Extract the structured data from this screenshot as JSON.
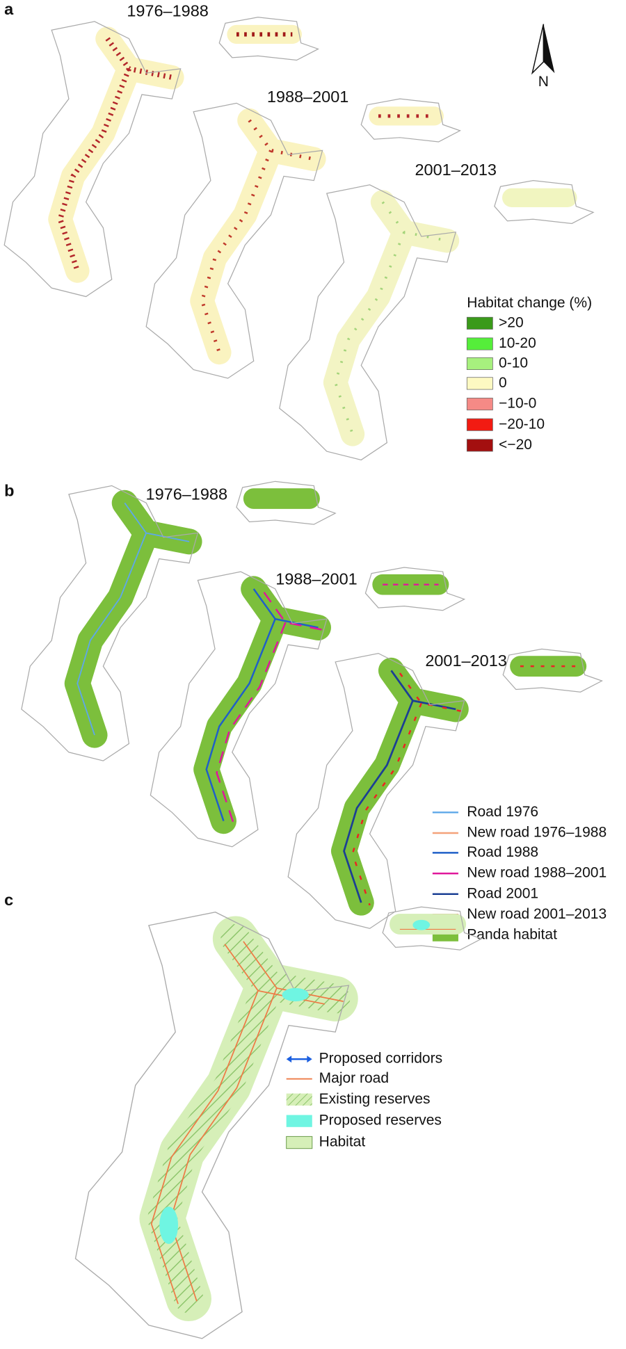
{
  "panels": [
    {
      "label": "a",
      "periods": [
        "1976–1988",
        "1988–2001",
        "2001–2013"
      ],
      "north": "N",
      "legend": {
        "title": "Habitat change (%)",
        "items": [
          ">20",
          "10-20",
          "0-10",
          "0",
          "−10-0",
          "−20-10",
          "<−20"
        ]
      }
    },
    {
      "label": "b",
      "periods": [
        "1976–1988",
        "1988–2001",
        "2001–2013"
      ],
      "legend": {
        "items": [
          "Road 1976",
          "New road 1976–1988",
          "Road 1988",
          "New road 1988–2001",
          "Road 2001",
          "New road 2001–2013",
          "Panda habitat"
        ]
      }
    },
    {
      "label": "c",
      "legend": {
        "items": [
          "Proposed corridors",
          "Major road",
          "Existing reserves",
          "Proposed reserves",
          "Habitat"
        ]
      }
    }
  ]
}
